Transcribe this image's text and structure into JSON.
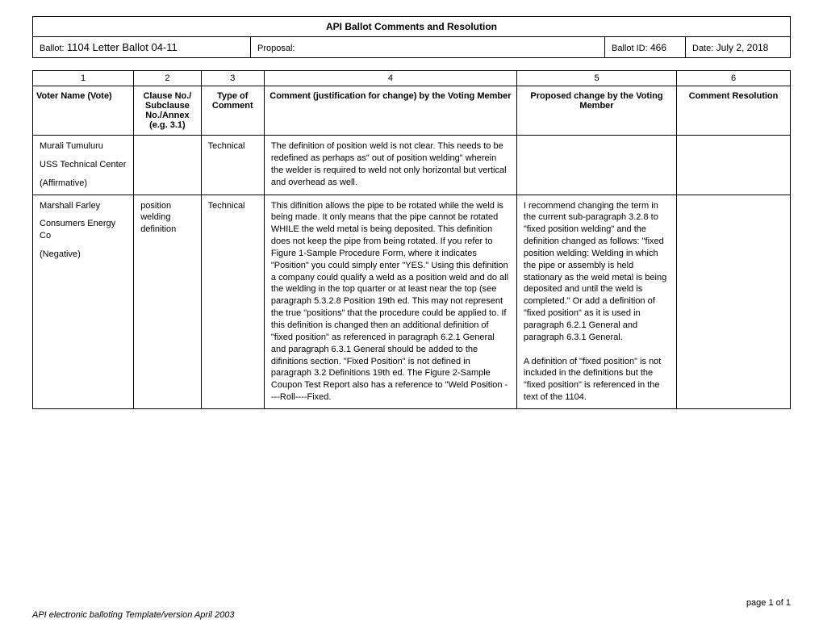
{
  "header": {
    "title": "API Ballot Comments and Resolution",
    "ballot_label": "Ballot:",
    "ballot_value": "1104 Letter Ballot 04-11",
    "proposal_label": "Proposal:",
    "proposal_value": "",
    "ballot_id_label": "Ballot ID:",
    "ballot_id_value": "466",
    "date_label": "Date:",
    "date_value": "July 2, 2018"
  },
  "columns": {
    "nums": [
      "1",
      "2",
      "3",
      "4",
      "5",
      "6"
    ],
    "headers": [
      "Voter Name (Vote)",
      "Clause No./ Subclause No./Annex (e.g. 3.1)",
      "Type of Comment",
      "Comment (justification for change) by the Voting Member",
      "Proposed change by the Voting Member",
      "Comment Resolution"
    ]
  },
  "rows": [
    {
      "voter_name": "Murali Tumuluru",
      "voter_org": "USS Technical Center",
      "voter_vote": "(Affirmative)",
      "clause": "",
      "type": "Technical",
      "comment": "The definition of position weld is not clear.  This needs to be redefined as perhaps as\" out of position welding\" wherein the welder is required to weld not only horizontal but vertical and overhead as well.",
      "proposed": "",
      "resolution": ""
    },
    {
      "voter_name": "Marshall Farley",
      "voter_org": "Consumers Energy Co",
      "voter_vote": "(Negative)",
      "clause": "position welding definition",
      "type": "Technical",
      "comment": "This difinition allows the pipe to be rotated while the weld is being made. It only means that the pipe cannot be rotated WHILE the weld metal is being deposited. This definition does not keep the pipe from being rotated. If you refer to Figure 1-Sample Procedure Form, where it indicates \"Position\" you could simply enter \"YES.\" Using this definition a company could qualify a weld as a position weld and do all the welding in the top quarter or at least near the top (see paragraph 5.3.2.8 Position 19th ed. This may not represent the true \"positions\" that the procedure could be applied to. If this definition is changed then an additional definition of \"fixed position\" as referenced in paragraph 6.2.1 General and paragraph 6.3.1 General should be added to the difinitions section. \"Fixed Position\" is not defined in paragraph 3.2 Definitions 19th ed. The Figure 2-Sample Coupon Test Report also has a reference to \"Weld Position ----Roll----Fixed.",
      "proposed": "I recommend changing the term in the current sub-paragraph 3.2.8 to \"fixed position welding\" and the definition changed as follows: \"fixed position welding: Welding in which the pipe or assembly is held stationary as the weld metal is being deposited and until the weld is completed.\" Or add a definition of \"fixed position\" as it is used in paragraph 6.2.1 General and paragraph 6.3.1 General.\n\nA definition of \"fixed position\" is not included in the definitions but the \"fixed position\" is referenced in the text of the 1104.",
      "resolution": ""
    }
  ],
  "footer": {
    "page": "page 1 of 1",
    "template": "API electronic balloting Template/version April 2003"
  },
  "layout": {
    "col_widths": [
      "120px",
      "80px",
      "75px",
      "300px",
      "190px",
      "135px"
    ]
  }
}
